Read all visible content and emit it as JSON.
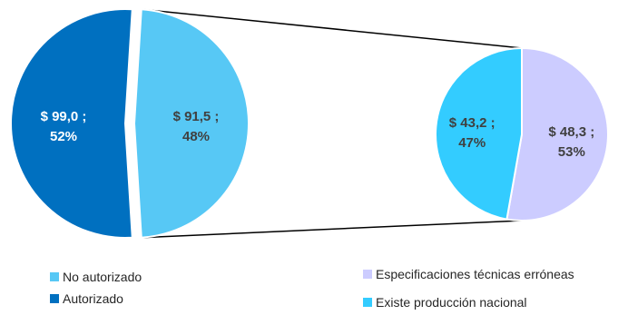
{
  "chart_data": {
    "type": "pie",
    "subtype": "pie-of-pie",
    "main_pie": {
      "slices": [
        {
          "name": "Autorizado",
          "value": 99.0,
          "percent": 52,
          "label_value": "$ 99,0 ;",
          "label_percent": "52%",
          "color": "#0070C0",
          "label_color": "#FFFFFF"
        },
        {
          "name": "No autorizado",
          "value": 91.5,
          "percent": 48,
          "label_value": "$ 91,5 ;",
          "label_percent": "48%",
          "color": "#57C8F5",
          "label_color": "#404040",
          "exploded": true
        }
      ]
    },
    "secondary_pie": {
      "breakdown_of": "No autorizado",
      "slices": [
        {
          "name": "Especificaciones técnicas erróneas",
          "value": 48.3,
          "percent": 53,
          "label_value": "$ 48,3 ;",
          "label_percent": "53%",
          "color": "#CCCCFF",
          "label_color": "#404040"
        },
        {
          "name": "Existe producción nacional",
          "value": 43.2,
          "percent": 47,
          "label_value": "$ 43,2 ;",
          "label_percent": "47%",
          "color": "#33CCFF",
          "label_color": "#404040"
        }
      ]
    },
    "legend": {
      "position": "bottom",
      "left": [
        {
          "label": "No autorizado",
          "color": "#57C8F5"
        },
        {
          "label": "Autorizado",
          "color": "#0070C0"
        }
      ],
      "right": [
        {
          "label": "Especificaciones técnicas erróneas",
          "color": "#CCCCFF"
        },
        {
          "label": "Existe producción nacional",
          "color": "#33CCFF"
        }
      ]
    }
  }
}
